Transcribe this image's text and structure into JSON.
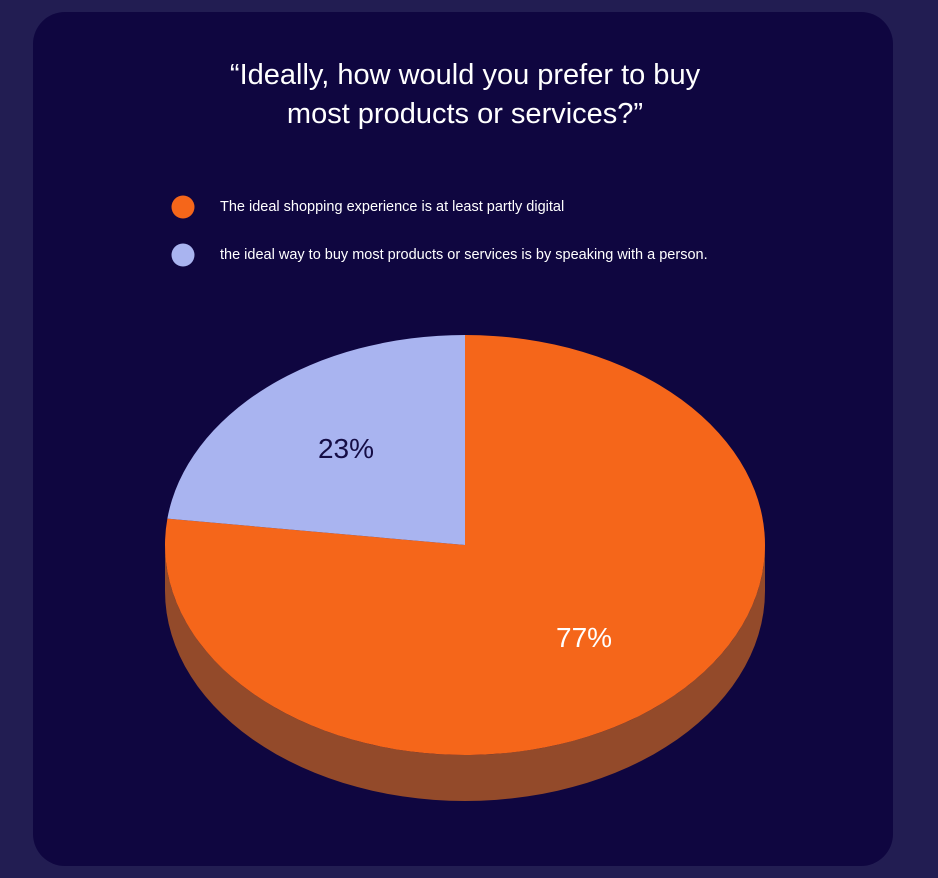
{
  "chart_data": {
    "type": "pie",
    "title": "“Ideally, how would you prefer to buy most products or services?”",
    "categories": [
      "The ideal shopping experience is at least partly digital",
      "the ideal way to buy most products or services is by speaking with a person."
    ],
    "values": [
      77,
      23
    ],
    "value_labels": [
      "77%",
      "23%"
    ],
    "colors": [
      "#f5661a",
      "#a9b4f0"
    ],
    "side_colors": [
      "#934a2a",
      "#5a67cf"
    ],
    "legend": "top"
  }
}
